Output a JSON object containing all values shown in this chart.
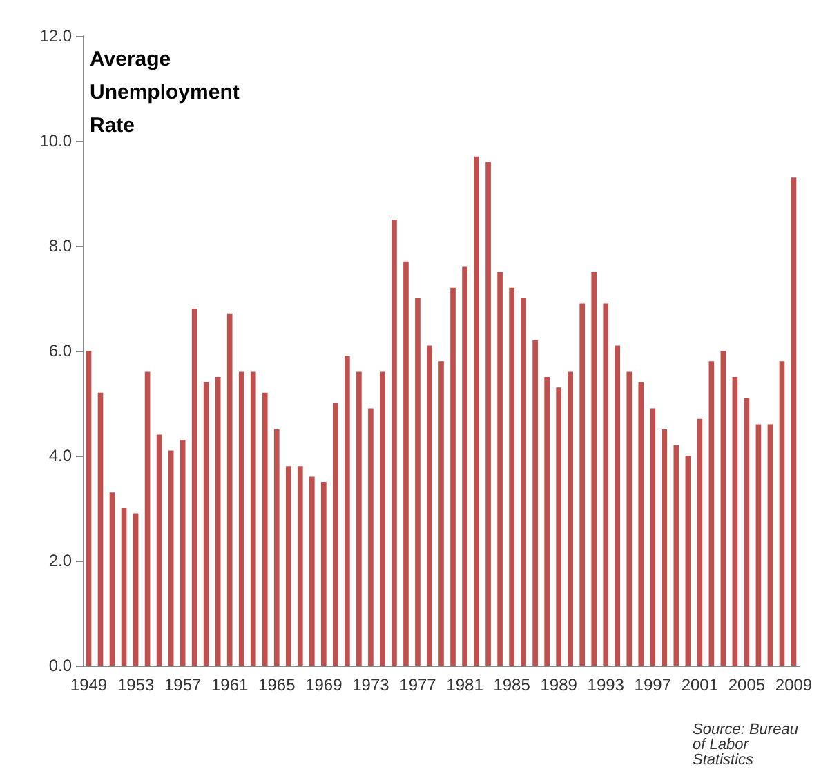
{
  "chart_data": {
    "type": "bar",
    "title": "Average Unemployment Rate",
    "categories": [
      "1949",
      null,
      null,
      null,
      "1953",
      null,
      null,
      null,
      "1957",
      null,
      null,
      null,
      "1961",
      null,
      null,
      null,
      "1965",
      null,
      null,
      null,
      "1969",
      null,
      null,
      null,
      "1973",
      null,
      null,
      null,
      "1977",
      null,
      null,
      null,
      "1981",
      null,
      null,
      null,
      "1985",
      null,
      null,
      null,
      "1989",
      null,
      null,
      null,
      "1993",
      null,
      null,
      null,
      "1997",
      null,
      null,
      null,
      "2001",
      null,
      null,
      null,
      "2005",
      null,
      null,
      null,
      "2009"
    ],
    "values": [
      6.0,
      5.2,
      3.3,
      3.0,
      2.9,
      5.6,
      4.4,
      4.1,
      4.3,
      6.8,
      5.4,
      5.5,
      6.7,
      5.6,
      5.6,
      5.2,
      4.5,
      3.8,
      3.8,
      3.6,
      3.5,
      5.0,
      5.9,
      5.6,
      4.9,
      5.6,
      8.5,
      7.7,
      7.0,
      6.1,
      5.8,
      7.2,
      7.6,
      9.7,
      9.6,
      7.5,
      7.2,
      7.0,
      6.2,
      5.5,
      5.3,
      5.6,
      6.9,
      7.5,
      6.9,
      6.1,
      5.6,
      5.4,
      4.9,
      4.5,
      4.2,
      4.0,
      4.7,
      5.8,
      6.0,
      5.5,
      5.1,
      4.6,
      4.6,
      5.8,
      9.3
    ],
    "color": "#c0504d",
    "ylim": [
      0,
      12
    ],
    "yticks": [
      {
        "value": 0,
        "label": "0.0"
      },
      {
        "value": 2,
        "label": "2.0"
      },
      {
        "value": 4,
        "label": "4.0"
      },
      {
        "value": 6,
        "label": "6.0"
      },
      {
        "value": 8,
        "label": "8.0"
      },
      {
        "value": 10,
        "label": "10.0"
      },
      {
        "value": 12,
        "label": "12.0"
      }
    ],
    "grid": false,
    "annotations": [
      "Source: Bureau of Labor Statistics"
    ]
  }
}
